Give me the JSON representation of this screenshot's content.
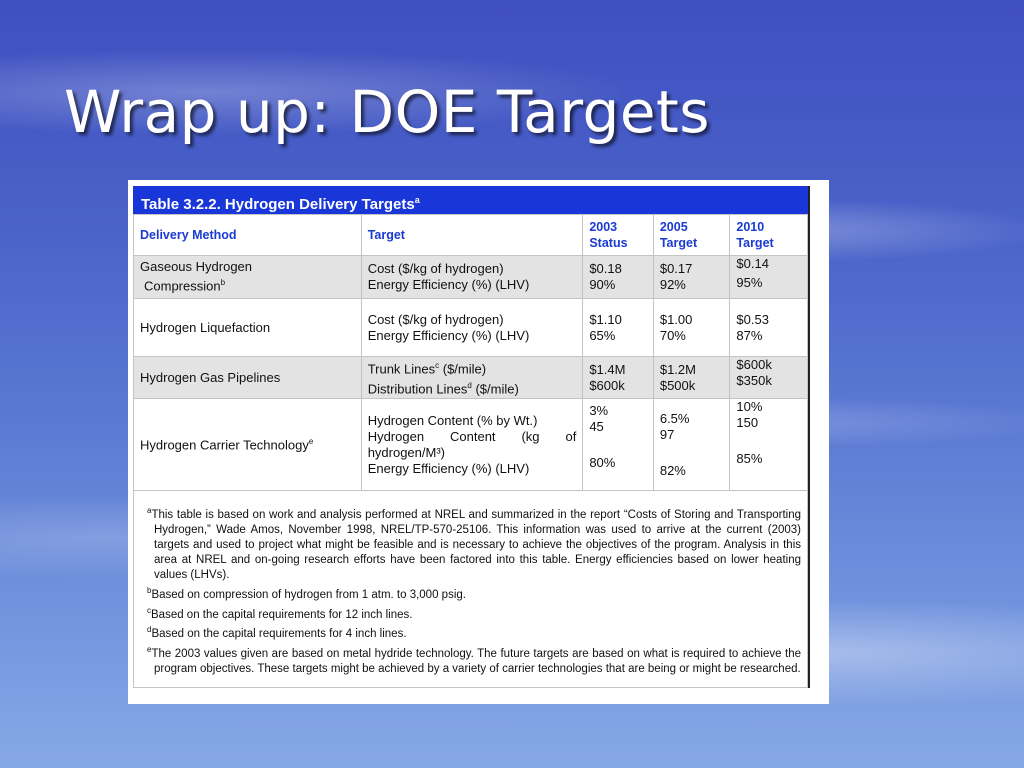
{
  "slide": {
    "title": "Wrap up: DOE Targets"
  },
  "table": {
    "caption": "Table 3.2.2. Hydrogen Delivery Targets",
    "caption_sup": "a",
    "headers": {
      "method": "Delivery Method",
      "target": "Target",
      "y2003_l1": "2003",
      "y2003_l2": "Status",
      "y2005_l1": "2005",
      "y2005_l2": "Target",
      "y2010_l1": "2010",
      "y2010_l2": "Target"
    },
    "rows": [
      {
        "method_l1": "Gaseous Hydrogen",
        "method_l2": "Compression",
        "method_sup": "b",
        "target_l1": "Cost ($/kg of hydrogen)",
        "target_l2": "Energy Efficiency (%) (LHV)",
        "v2003_l1": "$0.18",
        "v2003_l2": "90%",
        "v2005_l1": "$0.17",
        "v2005_l2": "92%",
        "v2010_l1": "$0.14",
        "v2010_l2": "95%"
      },
      {
        "method": "Hydrogen Liquefaction",
        "target_l1": "Cost ($/kg of hydrogen)",
        "target_l2": "Energy Efficiency (%) (LHV)",
        "v2003_l1": "$1.10",
        "v2003_l2": "65%",
        "v2005_l1": "$1.00",
        "v2005_l2": "70%",
        "v2010_l1": "$0.53",
        "v2010_l2": "87%"
      },
      {
        "method": "Hydrogen Gas Pipelines",
        "target_l1": "Trunk Lines",
        "target_l1_sup": "c",
        "target_l1_unit": " ($/mile)",
        "target_l2": "Distribution Lines",
        "target_l2_sup": "d",
        "target_l2_unit": " ($/mile)",
        "v2003_l1": "$1.4M",
        "v2003_l2": "$600k",
        "v2005_l1": "$1.2M",
        "v2005_l2": "$500k",
        "v2010_l1": "$600k",
        "v2010_l2": "$350k"
      },
      {
        "method": "Hydrogen Carrier Technology",
        "method_sup": "e",
        "target_l1": "Hydrogen Content (% by Wt.)",
        "target_l2": "Hydrogen Content (kg of hydrogen/M³)",
        "target_l3": "Energy Efficiency (%) (LHV)",
        "v2003_l1": "3%",
        "v2003_l2": "45",
        "v2003_l3": "80%",
        "v2005_l1": "6.5%",
        "v2005_l2": "97",
        "v2005_l3": "82%",
        "v2010_l1": "10%",
        "v2010_l2": "150",
        "v2010_l3": "85%"
      }
    ],
    "notes": {
      "a_mark": "a",
      "a": "This table is based on work and analysis performed at NREL and summarized in the report “Costs of Storing and Transporting Hydrogen,” Wade Amos, November 1998, NREL/TP-570-25106.  This information was used to arrive at the current (2003) targets and used to project what might be feasible and is necessary to achieve the objectives of the program.  Analysis in this area at NREL and on-going research efforts have been factored into this table.  Energy efficiencies based on lower heating values (LHVs).",
      "b_mark": "b",
      "b": "Based on  compression of  hydrogen from 1 atm. to 3,000 psig.",
      "c_mark": "c",
      "c": "Based on the capital requirements for 12 inch lines.",
      "d_mark": "d",
      "d": "Based on the capital requirements for 4 inch lines.",
      "e_mark": "e",
      "e": "The 2003 values given are based on metal hydride technology.  The future targets are based on what is required to achieve the program objectives.  These targets might be achieved by a variety of carrier technologies that are being or might be researched."
    }
  }
}
